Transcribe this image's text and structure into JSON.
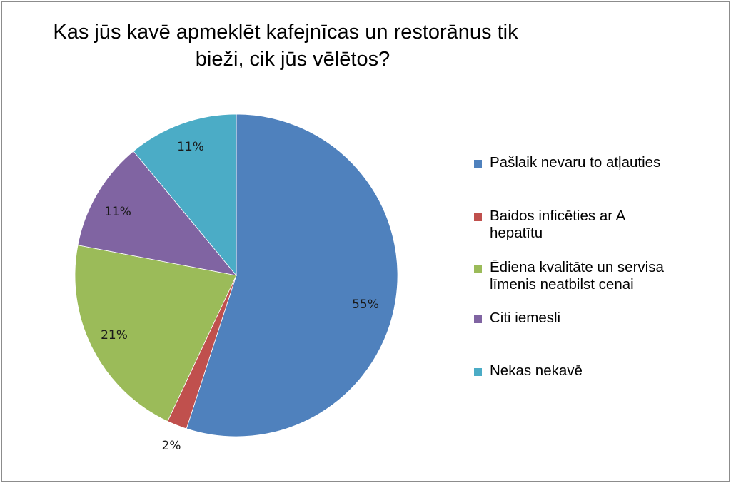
{
  "chart_data": {
    "type": "pie",
    "title": "Kas jūs kavē apmeklēt kafejnīcas un restorānus tik bieži, cik jūs vēlētos?",
    "title_lines": [
      "Kas jūs kavē apmeklēt kafejnīcas un restorānus tik",
      "bieži, cik jūs vēlētos?"
    ],
    "categories": [
      "Pašlaik nevaru to atļauties",
      "Baidos inficēties ar A hepatītu",
      "Ēdiena kvalitāte un servisa līmenis neatbilst cenai",
      "Citi iemesli",
      "Nekas nekavē"
    ],
    "values": [
      55,
      2,
      21,
      11,
      11
    ],
    "data_labels": [
      "55%",
      "2%",
      "21%",
      "11%",
      "11%"
    ],
    "colors": [
      "#4f81bd",
      "#c0504d",
      "#9bbb59",
      "#8064a2",
      "#4bacc6"
    ],
    "legend_position": "right",
    "start_angle": "12 o'clock, clockwise"
  },
  "legend": {
    "items": [
      {
        "lines": [
          "Pašlaik nevaru to atļauties"
        ],
        "color": "#4f81bd"
      },
      {
        "lines": [
          "Baidos inficēties ar A",
          "hepatītu"
        ],
        "color": "#c0504d"
      },
      {
        "lines": [
          "Ēdiena kvalitāte un servisa",
          "līmenis neatbilst cenai"
        ],
        "color": "#9bbb59"
      },
      {
        "lines": [
          "Citi iemesli"
        ],
        "color": "#8064a2"
      },
      {
        "lines": [
          "Nekas nekavē"
        ],
        "color": "#4bacc6"
      }
    ]
  }
}
